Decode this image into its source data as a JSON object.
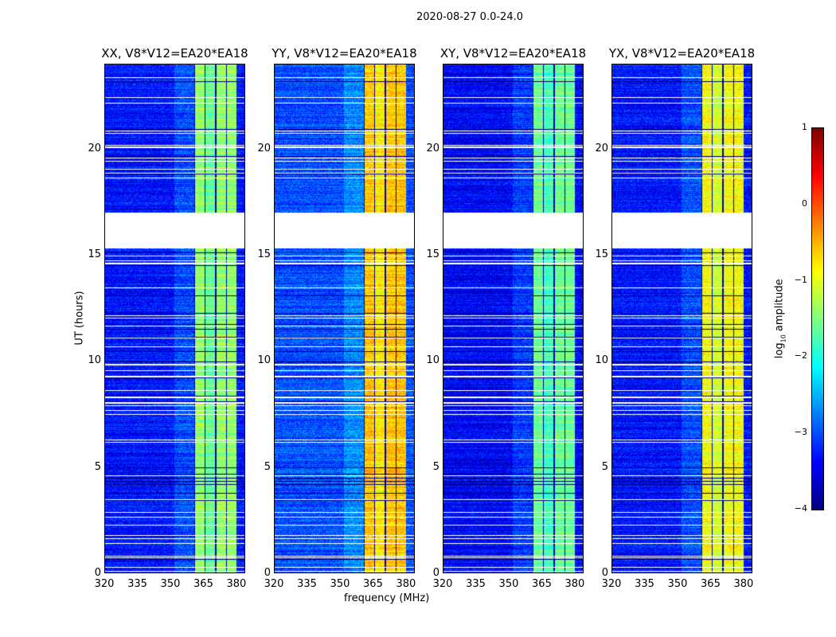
{
  "suptitle": "2020-08-27 0.0-24.0",
  "chart_data": {
    "type": "heatmap",
    "title": "2020-08-27 0.0-24.0",
    "xlabel": "frequency (MHz)",
    "ylabel": "UT (hours)",
    "xlim": [
      320,
      384
    ],
    "ylim": [
      0,
      24
    ],
    "xticks": [
      "320",
      "335",
      "350",
      "365",
      "380"
    ],
    "xtick_values": [
      320,
      335,
      350,
      365,
      380
    ],
    "yticks": [
      "0",
      "5",
      "10",
      "15",
      "20"
    ],
    "ytick_values": [
      0,
      5,
      10,
      15,
      20
    ],
    "panels": [
      {
        "title": "XX, V8*V12=EA20*EA18",
        "band_level": -1.4,
        "background_level": -3.3
      },
      {
        "title": "YY, V8*V12=EA20*EA18",
        "band_level": -0.6,
        "background_level": -3.0
      },
      {
        "title": "XY, V8*V12=EA20*EA18",
        "band_level": -1.6,
        "background_level": -3.4
      },
      {
        "title": "YX, V8*V12=EA20*EA18",
        "band_level": -0.9,
        "background_level": -3.3
      }
    ],
    "signal_band_mhz": [
      360.5,
      380
    ],
    "data_gap_hours": [
      15.3,
      17.0
    ],
    "colorbar": {
      "label": "log10 amplitude",
      "label_main": "log",
      "label_sub": "10",
      "label_rest": " amplitude",
      "range": [
        -4,
        1
      ],
      "ticks": [
        "1",
        "0",
        "−1",
        "−2",
        "−3",
        "−4"
      ],
      "tick_values": [
        1,
        0,
        -1,
        -2,
        -3,
        -4
      ],
      "colormap": "jet"
    }
  }
}
